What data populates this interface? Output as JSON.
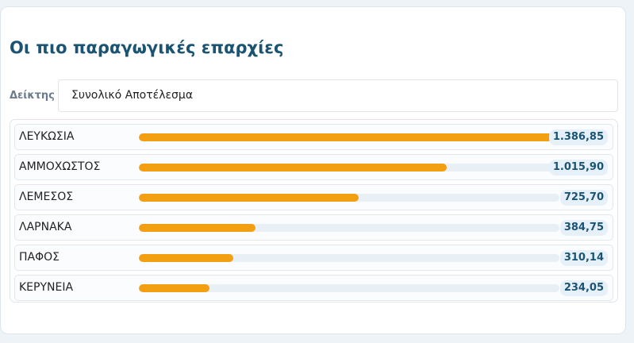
{
  "title": "Οι πιο παραγωγικές επαρχίες",
  "filter": {
    "label": "Δείκτης",
    "value": "Συνολικό Αποτέλεσμα"
  },
  "colors": {
    "bar_fill": "#f39f12",
    "bar_track": "#e8f0f6",
    "title": "#1b5373",
    "value_badge": "#e6f0f8"
  },
  "chart_data": {
    "type": "bar",
    "categories": [
      "ΛΕΥΚΩΣΙΑ",
      "ΑΜΜΟΧΩΣΤΟΣ",
      "ΛΕΜΕΣΟΣ",
      "ΛΑΡΝΑΚΑ",
      "ΠΑΦΟΣ",
      "ΚΕΡΥΝΕΙΑ"
    ],
    "values": [
      1386.85,
      1015.9,
      725.7,
      384.75,
      310.14,
      234.05
    ],
    "value_labels": [
      "1.386,85",
      "1.015,90",
      "725,70",
      "384,75",
      "310,14",
      "234,05"
    ],
    "title": "Οι πιο παραγωγικές επαρχίες",
    "xlabel": "",
    "ylabel": "",
    "ylim": [
      0,
      1386.85
    ]
  }
}
